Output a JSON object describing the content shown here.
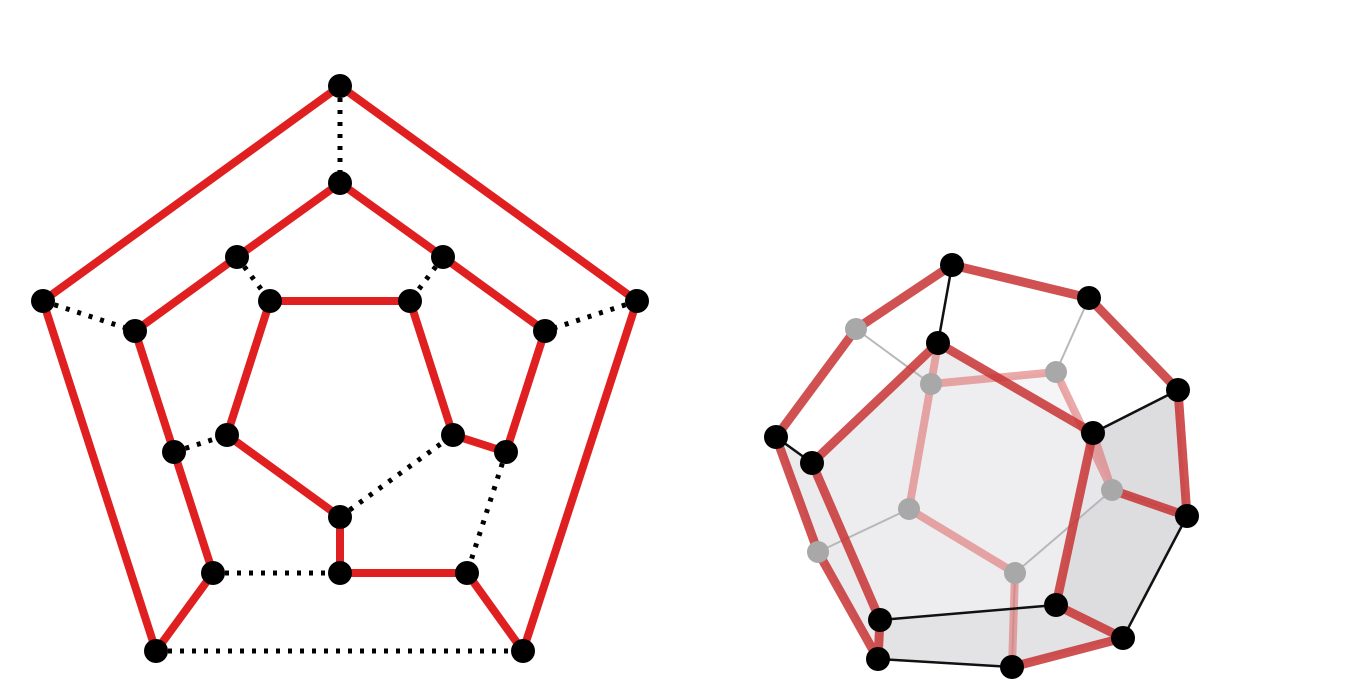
{
  "diagrams": [
    {
      "id": "schlegel-diagram",
      "description_kind": "planar-graph",
      "colors": {
        "cycle_edge": "#e02020",
        "other_edge": "#000000",
        "vertex": "#000000"
      }
    },
    {
      "id": "dodecahedron-3d",
      "description_kind": "polyhedron",
      "colors": {
        "cycle_edge": "#d42a2a",
        "edge": "#111111",
        "hidden_edge": "#b8b8b8",
        "face_fill": "#d8d8dc",
        "vertex": "#000000",
        "hidden_vertex": "#a0a0a0"
      }
    }
  ]
}
